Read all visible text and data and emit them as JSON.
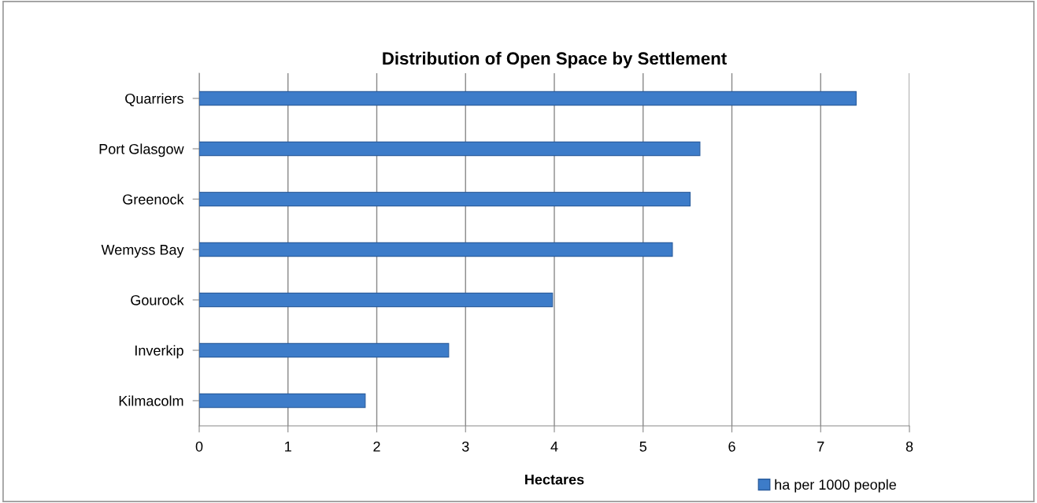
{
  "chart_data": {
    "type": "bar",
    "orientation": "horizontal",
    "title": "Distribution of Open Space by Settlement",
    "xlabel": "Hectares",
    "categories": [
      "Quarriers",
      "Port Glasgow",
      "Greenock",
      "Wemyss Bay",
      "Gourock",
      "Inverkip",
      "Kilmacolm"
    ],
    "series": [
      {
        "name": "ha per 1000 people",
        "color": "#3d7cc9",
        "values": [
          7.4,
          5.64,
          5.53,
          5.33,
          3.98,
          2.81,
          1.87
        ]
      }
    ],
    "xlim": [
      0,
      8
    ],
    "xticks": [
      0,
      1,
      2,
      3,
      4,
      5,
      6,
      7,
      8
    ],
    "grid": "x",
    "legend": "bottom right"
  }
}
